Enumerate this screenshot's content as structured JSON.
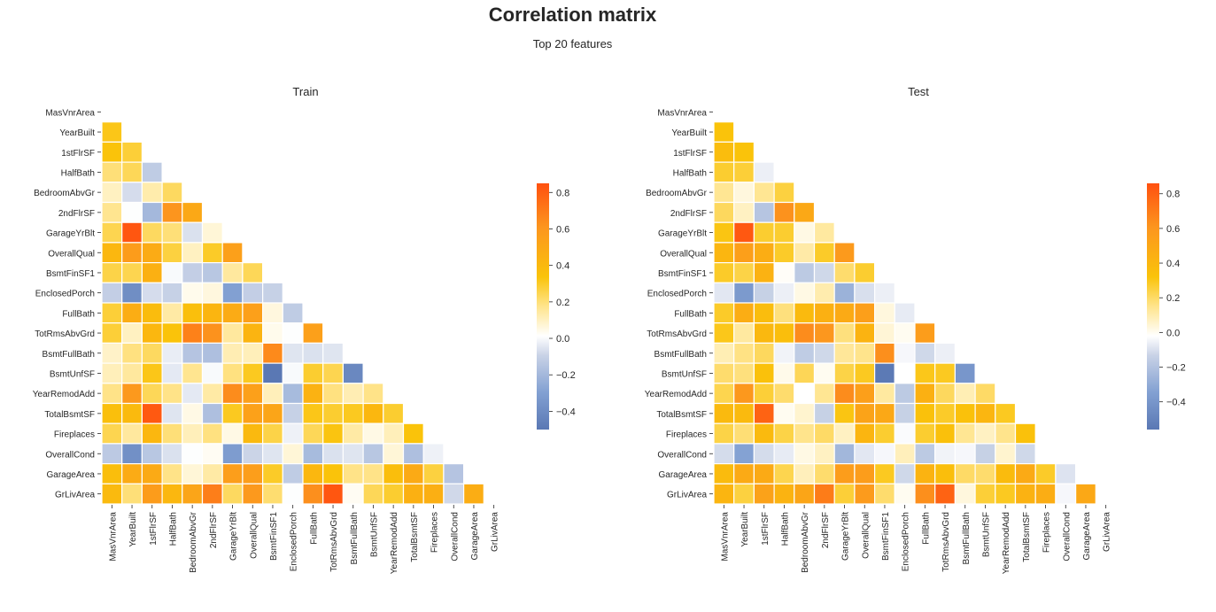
{
  "title": "Correlation matrix",
  "subtitle": "Top 20 features",
  "chart_data": [
    {
      "type": "heatmap",
      "title": "Train",
      "mask": "upper-triangle",
      "features": [
        "MasVnrArea",
        "YearBuilt",
        "1stFlrSF",
        "HalfBath",
        "BedroomAbvGr",
        "2ndFlrSF",
        "GarageYrBlt",
        "OverallQual",
        "BsmtFinSF1",
        "EnclosedPorch",
        "FullBath",
        "TotRmsAbvGrd",
        "BsmtFullBath",
        "BsmtUnfSF",
        "YearRemodAdd",
        "TotalBsmtSF",
        "Fireplaces",
        "OverallCond",
        "GarageArea",
        "GrLivArea"
      ],
      "values": [
        [],
        [
          0.32
        ],
        [
          0.34,
          0.28
        ],
        [
          0.2,
          0.24,
          -0.12
        ],
        [
          0.1,
          -0.07,
          0.13,
          0.23
        ],
        [
          0.17,
          0.01,
          -0.2,
          0.61,
          0.5
        ],
        [
          0.25,
          0.83,
          0.23,
          0.2,
          -0.06,
          0.07
        ],
        [
          0.41,
          0.57,
          0.48,
          0.27,
          0.1,
          0.3,
          0.55
        ],
        [
          0.26,
          0.25,
          0.45,
          0.0,
          -0.11,
          -0.14,
          0.15,
          0.24
        ],
        [
          -0.11,
          -0.39,
          -0.07,
          -0.1,
          0.04,
          0.06,
          -0.3,
          -0.11,
          -0.1
        ],
        [
          0.28,
          0.47,
          0.38,
          0.14,
          0.36,
          0.42,
          0.48,
          0.55,
          0.06,
          -0.12
        ],
        [
          0.28,
          0.1,
          0.41,
          0.34,
          0.68,
          0.62,
          0.15,
          0.43,
          0.04,
          0.01,
          0.55
        ],
        [
          0.09,
          0.19,
          0.23,
          -0.03,
          -0.15,
          -0.17,
          0.12,
          0.11,
          0.65,
          -0.05,
          -0.06,
          -0.05
        ],
        [
          0.11,
          0.15,
          0.32,
          -0.04,
          0.17,
          0.0,
          0.19,
          0.31,
          -0.5,
          0.0,
          0.29,
          0.25,
          -0.42
        ],
        [
          0.18,
          0.59,
          0.24,
          0.18,
          -0.04,
          0.14,
          0.64,
          0.55,
          0.11,
          -0.19,
          0.44,
          0.19,
          0.12,
          0.18
        ],
        [
          0.36,
          0.39,
          0.82,
          -0.05,
          0.05,
          -0.17,
          0.31,
          0.54,
          0.52,
          -0.1,
          0.32,
          0.29,
          0.31,
          0.41,
          0.29
        ],
        [
          0.25,
          0.15,
          0.41,
          0.2,
          0.11,
          0.19,
          0.05,
          0.4,
          0.26,
          -0.02,
          0.24,
          0.33,
          0.14,
          0.05,
          0.11,
          0.34
        ],
        [
          -0.13,
          -0.38,
          -0.14,
          -0.06,
          0.01,
          0.03,
          -0.32,
          -0.09,
          -0.05,
          0.07,
          -0.19,
          -0.06,
          -0.05,
          -0.14,
          0.07,
          -0.17,
          -0.02
        ],
        [
          0.37,
          0.48,
          0.49,
          0.18,
          0.07,
          0.14,
          0.56,
          0.56,
          0.3,
          -0.12,
          0.41,
          0.34,
          0.18,
          0.18,
          0.37,
          0.49,
          0.27,
          -0.15
        ],
        [
          0.39,
          0.2,
          0.57,
          0.41,
          0.52,
          0.69,
          0.23,
          0.59,
          0.21,
          0.01,
          0.63,
          0.83,
          0.03,
          0.24,
          0.29,
          0.45,
          0.46,
          -0.08,
          0.47
        ]
      ],
      "colorbar": {
        "min": -0.5,
        "max": 0.85,
        "ticks": [
          0.8,
          0.6,
          0.4,
          0.2,
          0.0,
          -0.2,
          -0.4
        ],
        "tick_labels": [
          "0.8",
          "0.6",
          "0.4",
          "0.2",
          "0.0",
          "−0.2",
          "−0.4"
        ]
      }
    },
    {
      "type": "heatmap",
      "title": "Test",
      "mask": "upper-triangle",
      "features": [
        "MasVnrArea",
        "YearBuilt",
        "1stFlrSF",
        "HalfBath",
        "BedroomAbvGr",
        "2ndFlrSF",
        "GarageYrBlt",
        "OverallQual",
        "BsmtFinSF1",
        "EnclosedPorch",
        "FullBath",
        "TotRmsAbvGrd",
        "BsmtFullBath",
        "BsmtUnfSF",
        "YearRemodAdd",
        "TotalBsmtSF",
        "Fireplaces",
        "OverallCond",
        "GarageArea",
        "GrLivArea"
      ],
      "values": [
        [],
        [
          0.32
        ],
        [
          0.36,
          0.32
        ],
        [
          0.27,
          0.26,
          -0.06
        ],
        [
          0.14,
          0.03,
          0.14,
          0.25
        ],
        [
          0.21,
          0.07,
          -0.19,
          0.62,
          0.49
        ],
        [
          0.31,
          0.83,
          0.27,
          0.27,
          0.02,
          0.12
        ],
        [
          0.4,
          0.55,
          0.46,
          0.28,
          0.11,
          0.28,
          0.58
        ],
        [
          0.28,
          0.24,
          0.43,
          -0.01,
          -0.17,
          -0.12,
          0.19,
          0.27
        ],
        [
          -0.08,
          -0.38,
          -0.14,
          -0.06,
          0.02,
          0.1,
          -0.27,
          -0.1,
          -0.06
        ],
        [
          0.28,
          0.46,
          0.36,
          0.17,
          0.38,
          0.44,
          0.48,
          0.55,
          0.03,
          -0.07
        ],
        [
          0.3,
          0.12,
          0.39,
          0.35,
          0.64,
          0.6,
          0.17,
          0.42,
          0.04,
          0.0,
          0.56
        ],
        [
          0.09,
          0.16,
          0.21,
          -0.05,
          -0.16,
          -0.12,
          0.13,
          0.15,
          0.63,
          -0.04,
          -0.12,
          -0.06
        ],
        [
          0.19,
          0.17,
          0.33,
          0.01,
          0.22,
          0.0,
          0.24,
          0.29,
          -0.55,
          -0.02,
          0.3,
          0.29,
          -0.4
        ],
        [
          0.23,
          0.59,
          0.26,
          0.19,
          -0.02,
          0.14,
          0.64,
          0.55,
          0.12,
          -0.17,
          0.44,
          0.21,
          0.09,
          0.2
        ],
        [
          0.38,
          0.38,
          0.79,
          0.0,
          0.05,
          -0.14,
          0.31,
          0.52,
          0.49,
          -0.14,
          0.33,
          0.28,
          0.33,
          0.4,
          0.29
        ],
        [
          0.24,
          0.18,
          0.38,
          0.24,
          0.15,
          0.2,
          0.07,
          0.41,
          0.27,
          -0.03,
          0.27,
          0.34,
          0.14,
          0.07,
          0.15,
          0.33
        ],
        [
          -0.11,
          -0.34,
          -0.11,
          -0.07,
          0.02,
          0.07,
          -0.25,
          -0.08,
          -0.04,
          0.08,
          -0.17,
          -0.05,
          -0.04,
          -0.14,
          0.05,
          -0.12,
          -0.02
        ],
        [
          0.37,
          0.48,
          0.48,
          0.23,
          0.08,
          0.19,
          0.56,
          0.56,
          0.29,
          -0.12,
          0.42,
          0.35,
          0.2,
          0.19,
          0.37,
          0.48,
          0.28,
          -0.09
        ],
        [
          0.41,
          0.25,
          0.53,
          0.42,
          0.51,
          0.7,
          0.26,
          0.57,
          0.19,
          0.0,
          0.63,
          0.79,
          0.03,
          0.26,
          0.29,
          0.43,
          0.46,
          -0.04,
          0.49
        ]
      ],
      "colorbar": {
        "min": -0.56,
        "max": 0.86,
        "ticks": [
          0.8,
          0.6,
          0.4,
          0.2,
          0.0,
          -0.2,
          -0.4
        ],
        "tick_labels": [
          "0.8",
          "0.6",
          "0.4",
          "0.2",
          "0.0",
          "−0.2",
          "−0.4"
        ]
      }
    }
  ]
}
